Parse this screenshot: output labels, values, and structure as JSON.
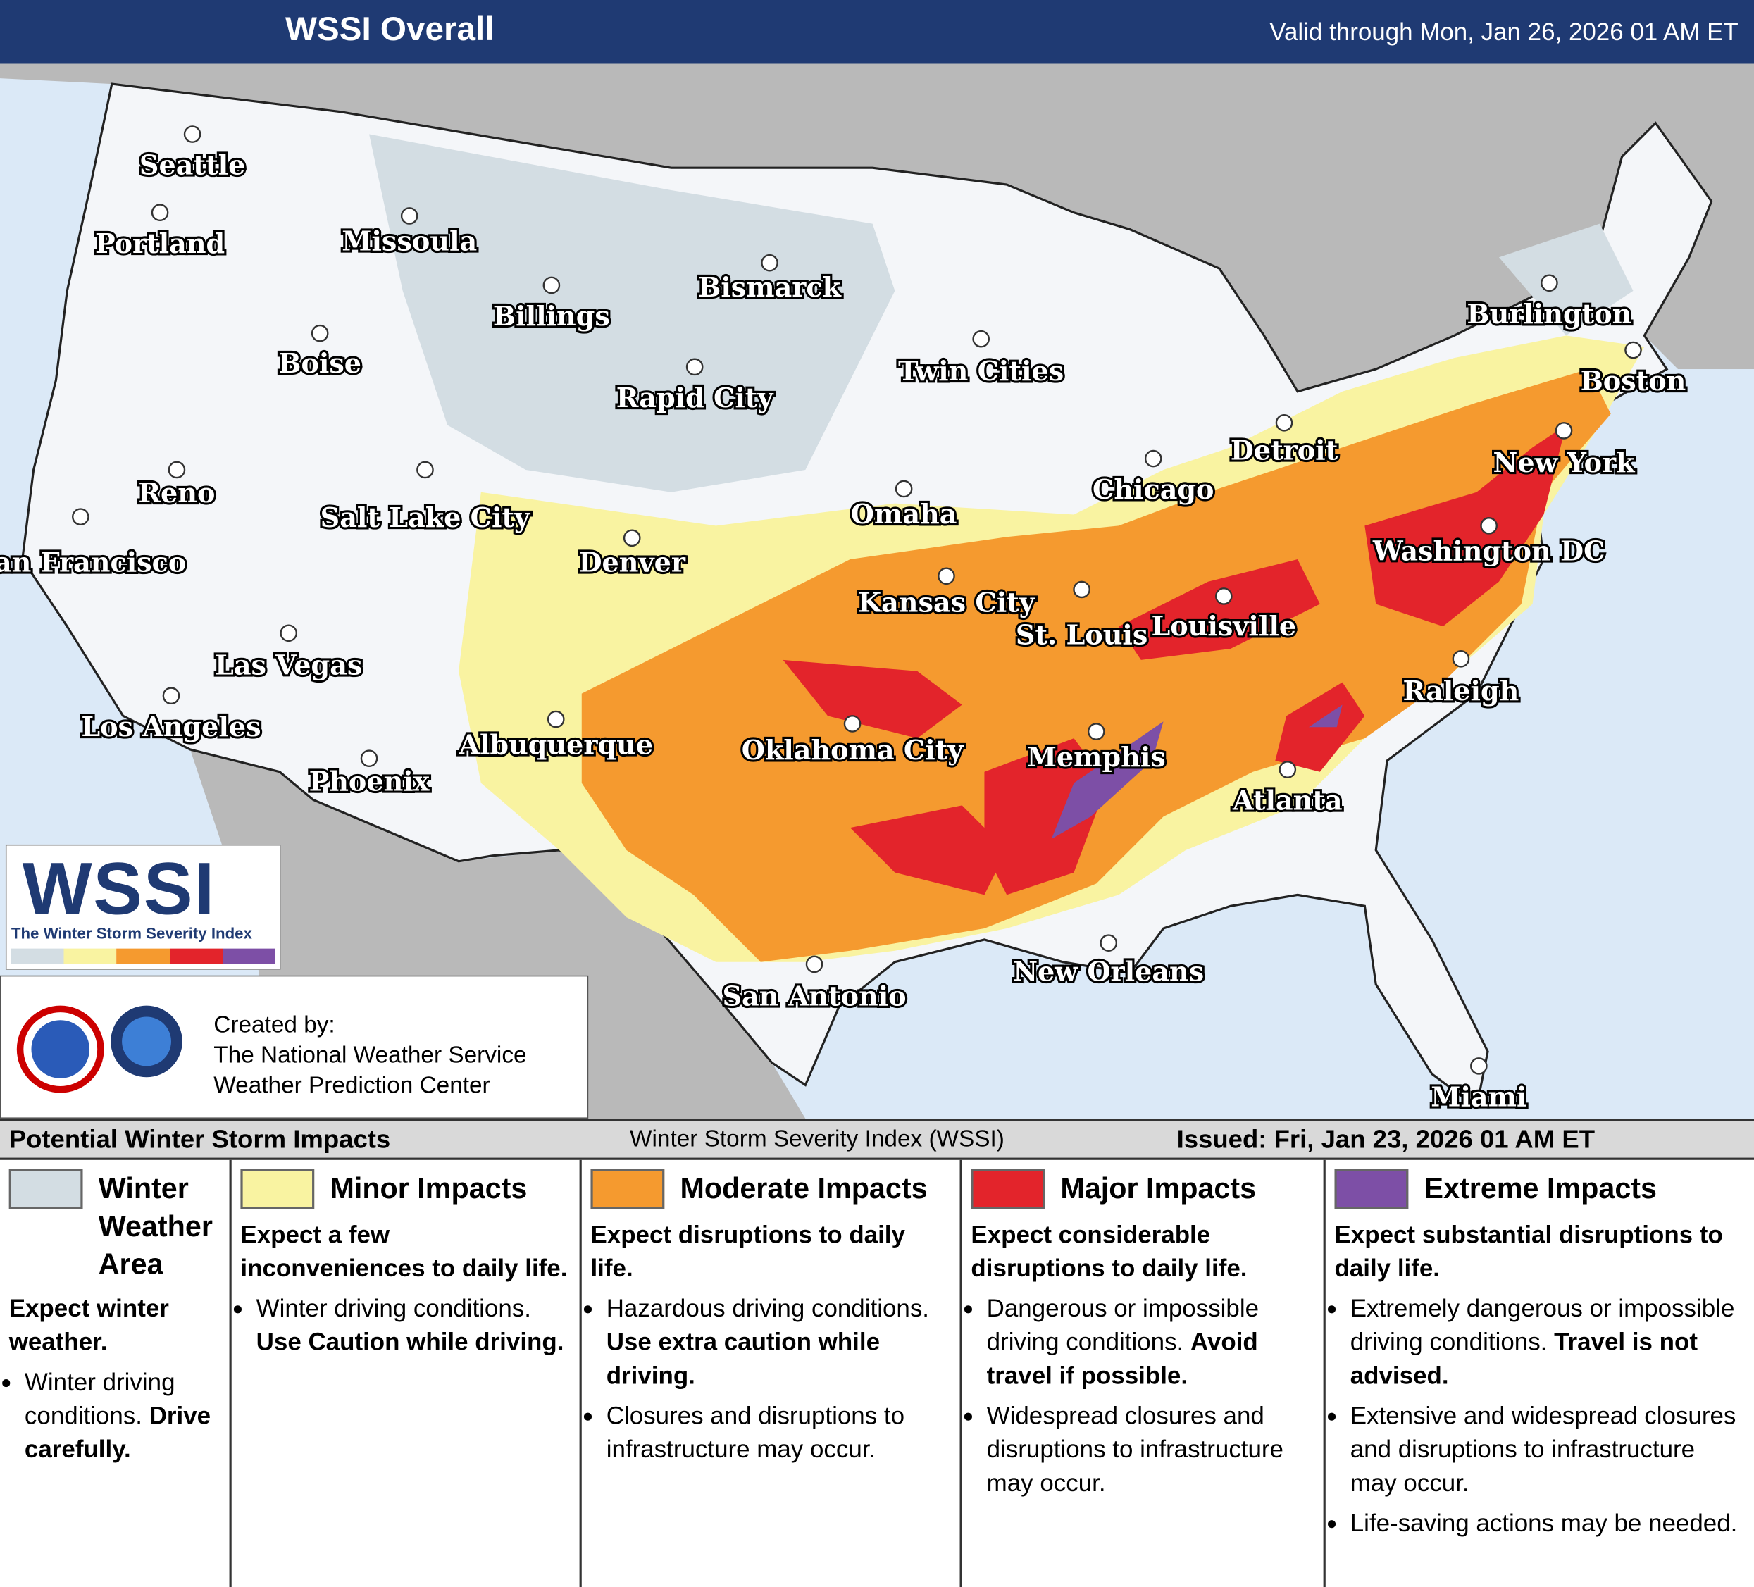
{
  "header": {
    "title": "WSSI Overall",
    "valid": "Valid through Mon, Jan 26, 2026 01 AM ET"
  },
  "map": {
    "cities": [
      "Seattle",
      "Portland",
      "Missoula",
      "Boise",
      "Billings",
      "Bismarck",
      "Rapid City",
      "Twin Cities",
      "Reno",
      "San Francisco",
      "Salt Lake City",
      "Las Vegas",
      "Los Angeles",
      "Phoenix",
      "Denver",
      "Albuquerque",
      "Omaha",
      "Kansas City",
      "St. Louis",
      "Oklahoma City",
      "Chicago",
      "Detroit",
      "Louisville",
      "Memphis",
      "Atlanta",
      "Washington DC",
      "New York",
      "Boston",
      "Burlington",
      "Raleigh",
      "New Orleans",
      "San Antonio",
      "Miami"
    ]
  },
  "logo": {
    "text": "WSSI",
    "subtitle": "The Winter Storm Severity Index"
  },
  "credits": {
    "lines": [
      "Created by:",
      "The National Weather Service",
      "Weather Prediction Center"
    ]
  },
  "legend": {
    "title": "Potential Winter Storm Impacts",
    "index": "Winter Storm Severity Index (WSSI)",
    "issued": "Issued: Fri, Jan 23, 2026 01 AM ET",
    "categories": [
      {
        "name": "Winter Weather Area",
        "color": "#d3dde3",
        "summary": "Expect winter weather.",
        "bullets": [
          {
            "text": "Winter driving conditions.",
            "bold": "Drive carefully."
          }
        ]
      },
      {
        "name": "Minor Impacts",
        "color": "#f9f3a1",
        "summary": "Expect a few inconveniences to daily life.",
        "bullets": [
          {
            "text": "Winter driving conditions.",
            "bold": "Use Caution while driving."
          }
        ]
      },
      {
        "name": "Moderate Impacts",
        "color": "#f59a2f",
        "summary": "Expect disruptions to daily life.",
        "bullets": [
          {
            "text": "Hazardous driving conditions.",
            "bold": "Use extra caution while driving."
          },
          {
            "text": "Closures and disruptions to infrastructure may occur."
          }
        ]
      },
      {
        "name": "Major Impacts",
        "color": "#e3242b",
        "summary": "Expect considerable disruptions to daily life.",
        "bullets": [
          {
            "text": "Dangerous or impossible driving conditions.",
            "bold": "Avoid travel if possible."
          },
          {
            "text": "Widespread closures and disruptions to infrastructure may occur."
          }
        ]
      },
      {
        "name": "Extreme Impacts",
        "color": "#7d4fa6",
        "summary": "Expect substantial disruptions to daily life.",
        "bullets": [
          {
            "text": "Extremely dangerous or impossible driving conditions.",
            "bold": "Travel is not advised."
          },
          {
            "text": "Extensive and widespread closures and disruptions to infrastructure may occur."
          },
          {
            "text": "Life-saving actions may be needed."
          }
        ]
      }
    ]
  }
}
